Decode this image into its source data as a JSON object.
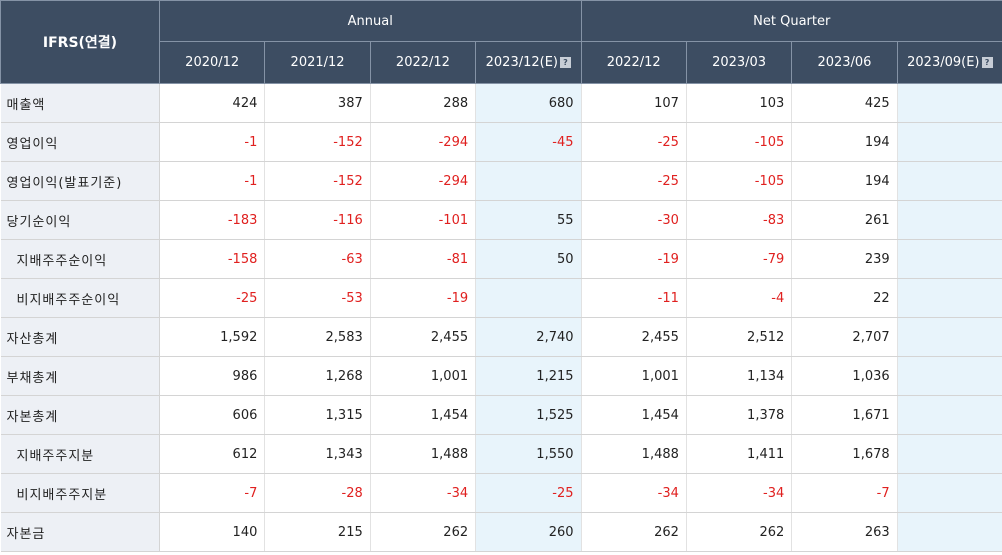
{
  "header": {
    "label": "IFRS(연결)",
    "groups": [
      {
        "label": "Annual"
      },
      {
        "label": "Net Quarter"
      }
    ],
    "periods": [
      {
        "label": "2020/12",
        "estimate": false
      },
      {
        "label": "2021/12",
        "estimate": false
      },
      {
        "label": "2022/12",
        "estimate": false
      },
      {
        "label": "2023/12(E)",
        "estimate": true
      },
      {
        "label": "2022/12",
        "estimate": false
      },
      {
        "label": "2023/03",
        "estimate": false
      },
      {
        "label": "2023/06",
        "estimate": false
      },
      {
        "label": "2023/09(E)",
        "estimate": true
      }
    ]
  },
  "rows": [
    {
      "label": "매출액",
      "indent": false,
      "values": [
        "424",
        "387",
        "288",
        "680",
        "107",
        "103",
        "425",
        ""
      ]
    },
    {
      "label": "영업이익",
      "indent": false,
      "values": [
        "-1",
        "-152",
        "-294",
        "-45",
        "-25",
        "-105",
        "194",
        ""
      ]
    },
    {
      "label": "영업이익(발표기준)",
      "indent": false,
      "values": [
        "-1",
        "-152",
        "-294",
        "",
        "-25",
        "-105",
        "194",
        ""
      ]
    },
    {
      "label": "당기순이익",
      "indent": false,
      "values": [
        "-183",
        "-116",
        "-101",
        "55",
        "-30",
        "-83",
        "261",
        ""
      ]
    },
    {
      "label": "지배주주순이익",
      "indent": true,
      "values": [
        "-158",
        "-63",
        "-81",
        "50",
        "-19",
        "-79",
        "239",
        ""
      ]
    },
    {
      "label": "비지배주주순이익",
      "indent": true,
      "values": [
        "-25",
        "-53",
        "-19",
        "",
        "-11",
        "-4",
        "22",
        ""
      ]
    },
    {
      "label": "자산총계",
      "indent": false,
      "values": [
        "1,592",
        "2,583",
        "2,455",
        "2,740",
        "2,455",
        "2,512",
        "2,707",
        ""
      ]
    },
    {
      "label": "부채총계",
      "indent": false,
      "values": [
        "986",
        "1,268",
        "1,001",
        "1,215",
        "1,001",
        "1,134",
        "1,036",
        ""
      ]
    },
    {
      "label": "자본총계",
      "indent": false,
      "values": [
        "606",
        "1,315",
        "1,454",
        "1,525",
        "1,454",
        "1,378",
        "1,671",
        ""
      ]
    },
    {
      "label": "지배주주지분",
      "indent": true,
      "values": [
        "612",
        "1,343",
        "1,488",
        "1,550",
        "1,488",
        "1,411",
        "1,678",
        ""
      ]
    },
    {
      "label": "비지배주주지분",
      "indent": true,
      "values": [
        "-7",
        "-28",
        "-34",
        "-25",
        "-34",
        "-34",
        "-7",
        ""
      ]
    },
    {
      "label": "자본금",
      "indent": false,
      "values": [
        "140",
        "215",
        "262",
        "260",
        "262",
        "262",
        "263",
        ""
      ]
    }
  ],
  "icons": {
    "estimate_info": "info-icon"
  }
}
